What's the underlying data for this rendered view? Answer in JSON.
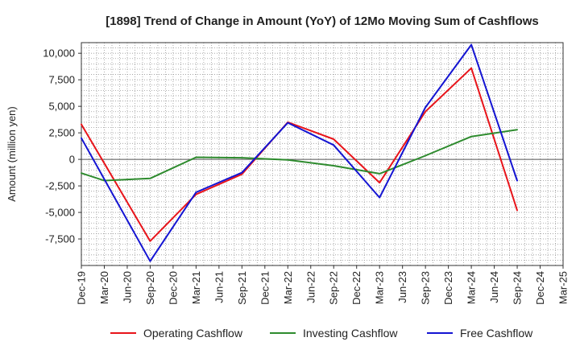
{
  "chart_data": {
    "type": "line",
    "title": "[1898]  Trend of Change in Amount (YoY) of 12Mo Moving Sum of Cashflows",
    "xlabel": "",
    "ylabel": "Amount (million yen)",
    "categories": [
      "Dec-19",
      "Mar-20",
      "Jun-20",
      "Sep-20",
      "Dec-20",
      "Mar-21",
      "Jun-21",
      "Sep-21",
      "Dec-21",
      "Mar-22",
      "Jun-22",
      "Sep-22",
      "Dec-22",
      "Mar-23",
      "Jun-23",
      "Sep-23",
      "Dec-23",
      "Mar-24",
      "Jun-24",
      "Sep-24",
      "Dec-24",
      "Mar-25"
    ],
    "ylim": [
      -10000,
      11000
    ],
    "yticks": [
      -7500,
      -5000,
      -2500,
      0,
      2500,
      5000,
      7500,
      10000
    ],
    "ytick_labels": [
      "-7,500",
      "-5,000",
      "-2,500",
      "0",
      "2,500",
      "5,000",
      "7,500",
      "10,000"
    ],
    "grid": true,
    "legend_position": "bottom",
    "series": [
      {
        "name": "Operating Cashflow",
        "color": "#e8141a",
        "values": [
          3300,
          null,
          null,
          -7700,
          null,
          -3300,
          null,
          -1400,
          null,
          3500,
          null,
          1900,
          null,
          -2200,
          null,
          4500,
          null,
          8600,
          null,
          -4800,
          null,
          null
        ]
      },
      {
        "name": "Investing Cashflow",
        "color": "#2e8b2e",
        "values": [
          -1300,
          -2000,
          null,
          -1800,
          null,
          200,
          null,
          150,
          null,
          -50,
          null,
          -600,
          null,
          -1350,
          null,
          350,
          null,
          2150,
          null,
          2800,
          null,
          null
        ]
      },
      {
        "name": "Free Cashflow",
        "color": "#1414d2",
        "values": [
          2000,
          null,
          null,
          -9600,
          null,
          -3100,
          null,
          -1250,
          null,
          3450,
          null,
          1350,
          null,
          -3600,
          null,
          4900,
          null,
          10800,
          null,
          -2000,
          null,
          null
        ]
      }
    ]
  }
}
